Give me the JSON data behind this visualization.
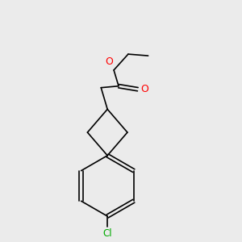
{
  "background_color": "#ebebeb",
  "bond_color": "#000000",
  "oxygen_color": "#ff0000",
  "chlorine_color": "#00aa00",
  "line_width": 1.2,
  "figsize": [
    3.0,
    3.0
  ],
  "dpi": 100,
  "xlim": [
    -0.6,
    0.9
  ],
  "ylim": [
    -1.55,
    1.35
  ]
}
